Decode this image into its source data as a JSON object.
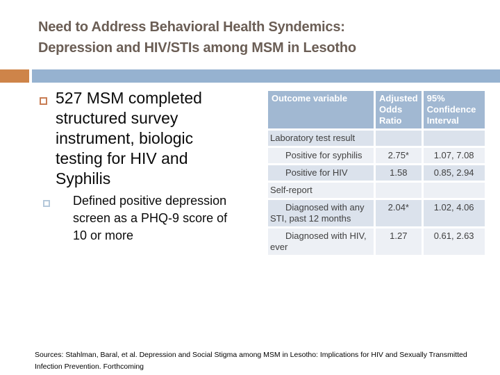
{
  "title": {
    "line1": "Need to Address Behavioral Health Syndemics:",
    "line2": "Depression and HIV/STIs among MSM in Lesotho"
  },
  "bullets": {
    "main": "527 MSM completed structured survey instrument, biologic testing for HIV and Syphilis",
    "sub": "Defined positive depression screen as a PHQ-9 score of 10 or more"
  },
  "table": {
    "headers": [
      "Outcome variable",
      "Adjusted Odds Ratio",
      "95% Confidence Interval"
    ],
    "rows": [
      {
        "label": "Laboratory test result",
        "aor": "",
        "ci": "",
        "type": "section"
      },
      {
        "label": "Positive for syphilis",
        "aor": "2.75*",
        "ci": "1.07, 7.08",
        "type": "indent"
      },
      {
        "label": "Positive for HIV",
        "aor": "1.58",
        "ci": "0.85, 2.94",
        "type": "indent"
      },
      {
        "label": "Self-report",
        "aor": "",
        "ci": "",
        "type": "section"
      },
      {
        "label": "Diagnosed with any STI, past 12 months",
        "aor": "2.04*",
        "ci": "1.02, 4.06",
        "type": "indent"
      },
      {
        "label": "Diagnosed with HIV, ever",
        "aor": "1.27",
        "ci": "0.61, 2.63",
        "type": "indent"
      }
    ]
  },
  "footer": {
    "lines": [
      "Sources: Stahlman, Baral, et al. Depression and Social Stigma among MSM in Lesotho: Implications for HIV and Sexually Transmitted",
      "Infection Prevention.  Forthcoming"
    ]
  },
  "colors": {
    "accent_orange": "#CE8449",
    "accent_blue": "#96B2D0",
    "table_header_blue": "#A1B8D2",
    "band_dark": "#DBE2EC",
    "band_light": "#EDF0F5",
    "title_text": "#6B5E55"
  }
}
